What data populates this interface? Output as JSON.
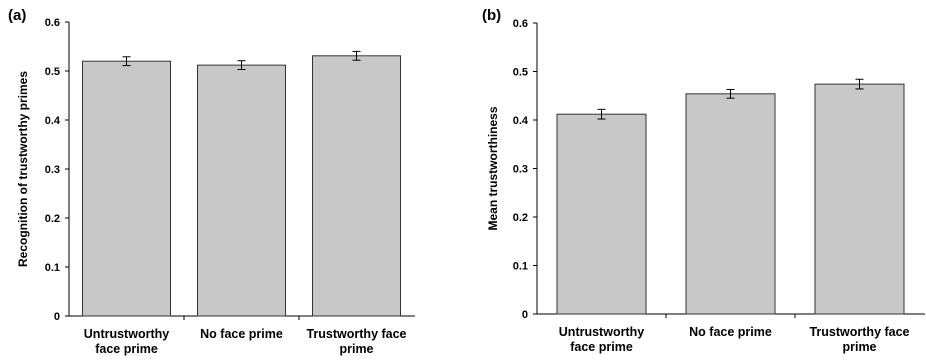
{
  "chart_data": [
    {
      "panel_label": "(a)",
      "type": "bar",
      "categories": [
        [
          "Untrustworthy",
          "face prime"
        ],
        [
          "No face prime"
        ],
        [
          "Trustworthy face",
          "prime"
        ]
      ],
      "values": [
        0.52,
        0.512,
        0.531
      ],
      "error": [
        0.009,
        0.009,
        0.009
      ],
      "xlabel": "",
      "ylabel": "Recognition of trustworthy primes",
      "ylim": [
        0,
        0.6
      ],
      "yticks": [
        "0",
        "0.1",
        "0.2",
        "0.3",
        "0.4",
        "0.5",
        "0.6"
      ],
      "grid": false,
      "bar_color": "#c8c8c8"
    },
    {
      "panel_label": "(b)",
      "type": "bar",
      "categories": [
        [
          "Untrustworthy",
          "face prime"
        ],
        [
          "No face prime"
        ],
        [
          "Trustworthy face",
          "prime"
        ]
      ],
      "values": [
        0.412,
        0.454,
        0.474
      ],
      "error": [
        0.01,
        0.009,
        0.01
      ],
      "xlabel": "",
      "ylabel": "Mean trustworthiness",
      "ylim": [
        0,
        0.6
      ],
      "yticks": [
        "0",
        "0.1",
        "0.2",
        "0.3",
        "0.4",
        "0.5",
        "0.6"
      ],
      "grid": false,
      "bar_color": "#c8c8c8"
    }
  ]
}
